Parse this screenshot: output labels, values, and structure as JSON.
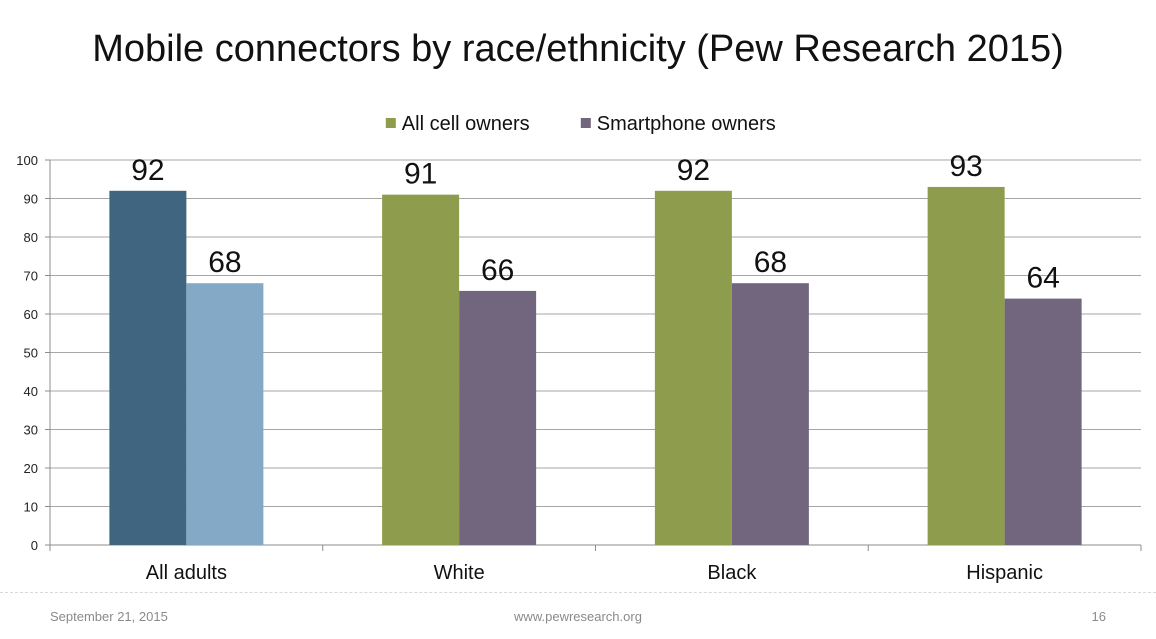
{
  "slide": {
    "title": "Mobile connectors by race/ethnicity (Pew Research 2015)",
    "footer_date": "September 21, 2015",
    "footer_site": "www.pewresearch.org",
    "page_number": "16"
  },
  "chart_data": {
    "type": "bar",
    "title": "Mobile connectors by race/ethnicity (Pew Research 2015)",
    "xlabel": "",
    "ylabel": "",
    "ylim": [
      0,
      100
    ],
    "yticks": [
      0,
      10,
      20,
      30,
      40,
      50,
      60,
      70,
      80,
      90,
      100
    ],
    "grid": true,
    "legend_position": "top",
    "categories": [
      "All adults",
      "White",
      "Black",
      "Hispanic"
    ],
    "series": [
      {
        "name": "All cell owners",
        "values": [
          92,
          91,
          92,
          93
        ],
        "color": "#8E9C4E",
        "point_colors": [
          "#3F6580",
          "#8E9C4E",
          "#8E9C4E",
          "#8E9C4E"
        ]
      },
      {
        "name": "Smartphone owners",
        "values": [
          68,
          66,
          68,
          64
        ],
        "color": "#72667E",
        "point_colors": [
          "#84A9C6",
          "#72667E",
          "#72667E",
          "#72667E"
        ]
      }
    ]
  }
}
